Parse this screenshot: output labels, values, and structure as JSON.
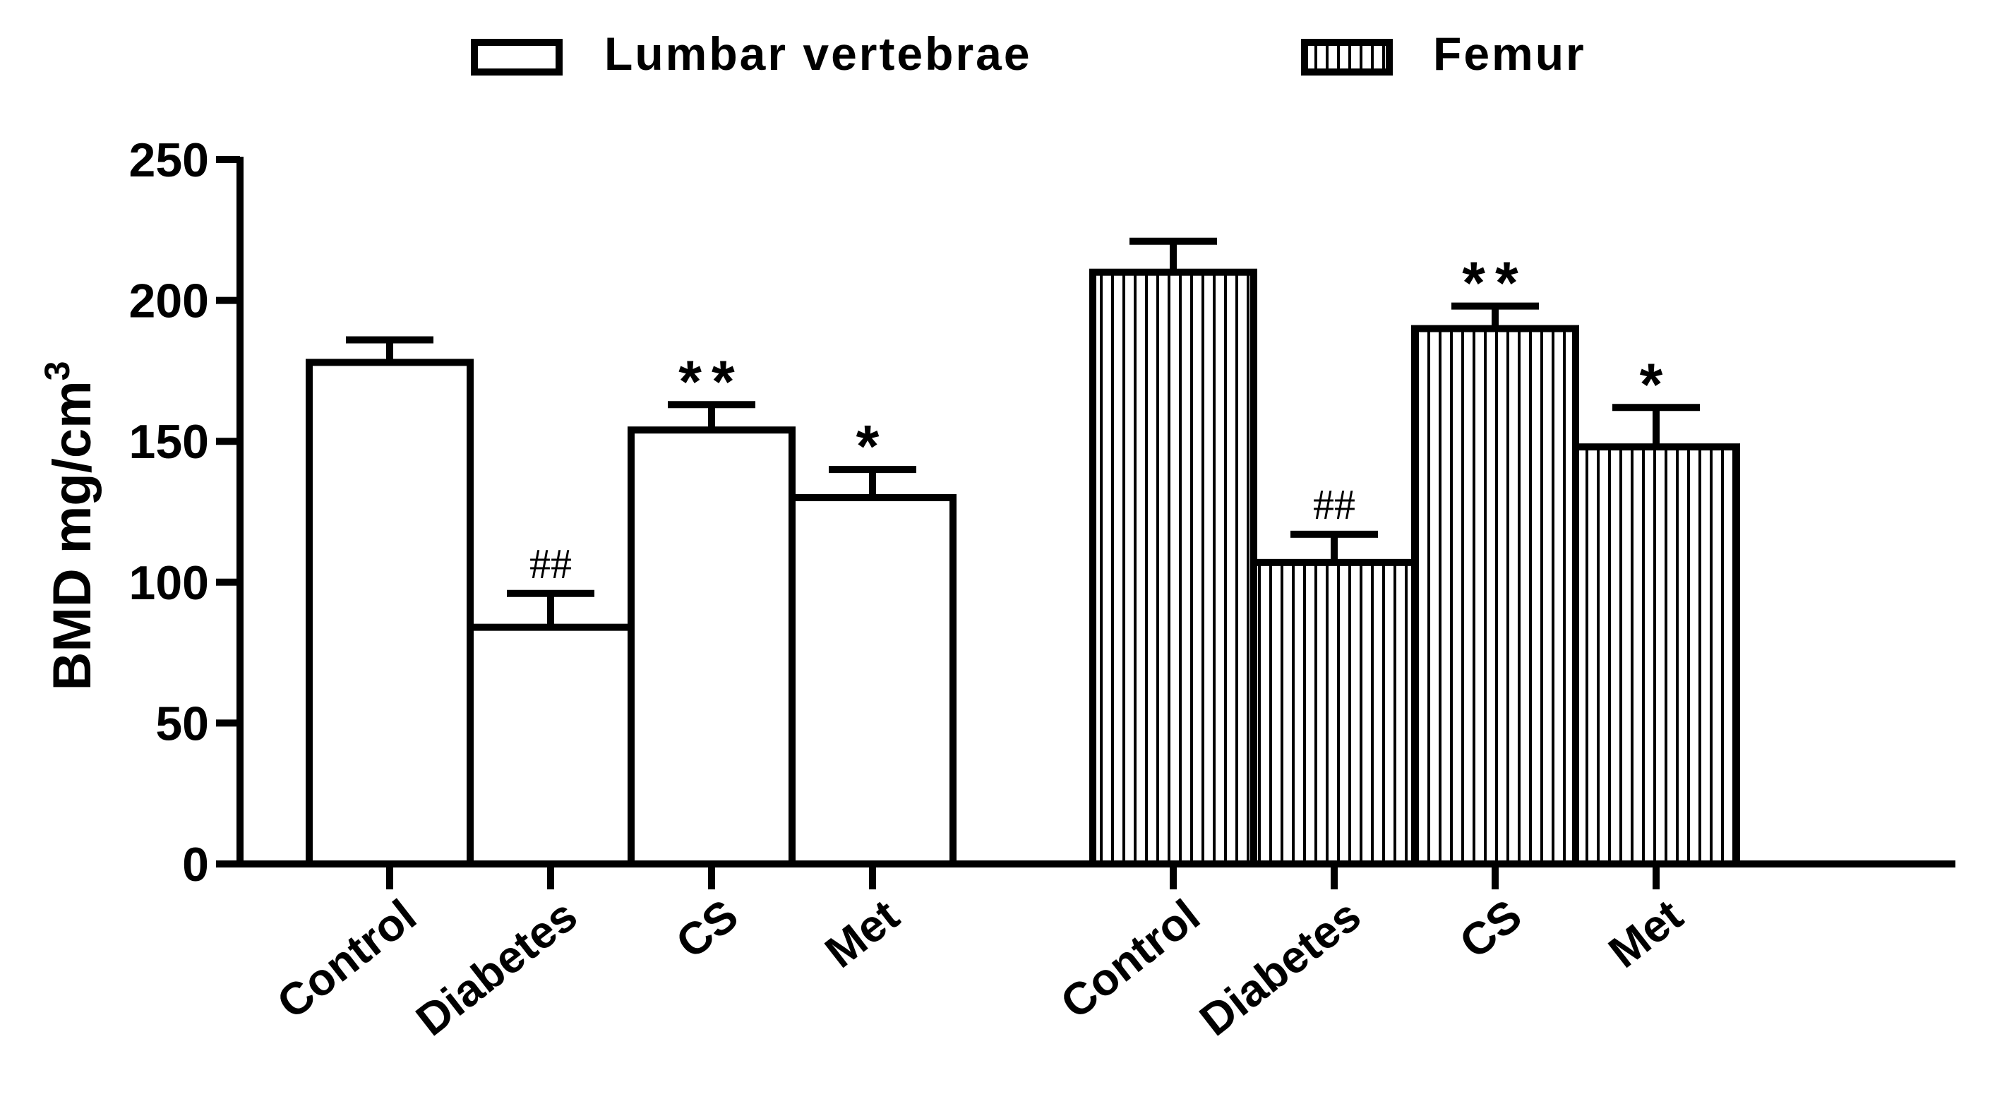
{
  "chart_data": {
    "type": "bar",
    "ylabel": "BMD mg/cm",
    "ylabel_superscript": "3",
    "ylim": [
      0,
      250
    ],
    "yticks": [
      0,
      50,
      100,
      150,
      200,
      250
    ],
    "grid": false,
    "legend_position": "top",
    "groups": [
      {
        "name": "Lumbar vertebrae",
        "pattern": "open",
        "categories": [
          "Control",
          "Diabetes",
          "CS",
          "Met"
        ],
        "values": [
          178,
          84,
          154,
          130
        ],
        "errors": [
          8,
          12,
          9,
          10
        ],
        "annotations": [
          "",
          "##",
          "**",
          "*"
        ]
      },
      {
        "name": "Femur",
        "pattern": "vertical-stripes",
        "categories": [
          "Control",
          "Diabetes",
          "CS",
          "Met"
        ],
        "values": [
          210,
          107,
          190,
          148
        ],
        "errors": [
          11,
          10,
          8,
          14
        ],
        "annotations": [
          "",
          "##",
          "**",
          "*"
        ]
      }
    ]
  }
}
